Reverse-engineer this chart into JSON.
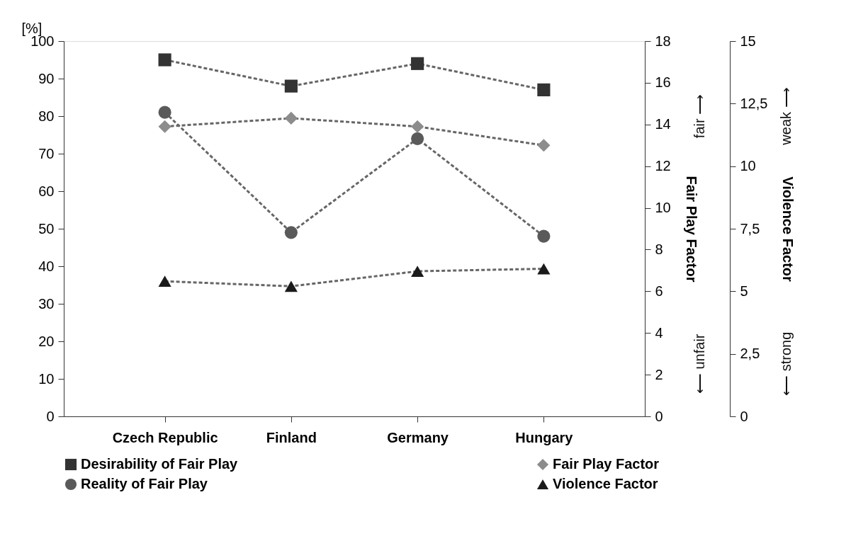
{
  "chart_data": {
    "type": "line",
    "categories": [
      "Czech Republic",
      "Finland",
      "Germany",
      "Hungary"
    ],
    "ylabel": "[%]",
    "y2label": "Fair Play Factor",
    "y3label": "Violence Factor",
    "ylim": [
      0,
      100
    ],
    "yticks": [
      0,
      10,
      20,
      30,
      40,
      50,
      60,
      70,
      80,
      90,
      100
    ],
    "y2lim": [
      0,
      18
    ],
    "y2ticks": [
      0,
      2,
      4,
      6,
      8,
      10,
      12,
      14,
      16,
      18
    ],
    "y3lim": [
      0,
      15
    ],
    "y3ticks": [
      0,
      {
        "value": 2.5,
        "label": "2,5"
      },
      5,
      {
        "value": 7.5,
        "label": "7,5"
      },
      10,
      {
        "value": 12.5,
        "label": "12,5"
      },
      15
    ],
    "line_style": "dashed",
    "grid": false,
    "legend": "bottom",
    "annotations": [
      "fair ⟶",
      "⟵ unfair",
      "weak ⟶",
      "⟵ strong"
    ],
    "series": [
      {
        "name": "Desirability of Fair Play",
        "color": "#333333",
        "marker": "square",
        "values": [
          95,
          88,
          94,
          87
        ]
      },
      {
        "name": "Reality of Fair Play",
        "color": "#5a5a5a",
        "marker": "circle",
        "values": [
          81,
          49,
          74,
          48
        ]
      },
      {
        "name": "Fair Play Factor",
        "color": "#8c8c8c",
        "marker": "diamond",
        "axis": "y2",
        "values": [
          13.9,
          14.3,
          13.9,
          13.0
        ]
      },
      {
        "name": "Violence Factor",
        "color": "#1a1a1a",
        "marker": "triangle",
        "axis": "y3",
        "values": [
          5.4,
          5.2,
          5.8,
          5.9
        ]
      }
    ]
  }
}
